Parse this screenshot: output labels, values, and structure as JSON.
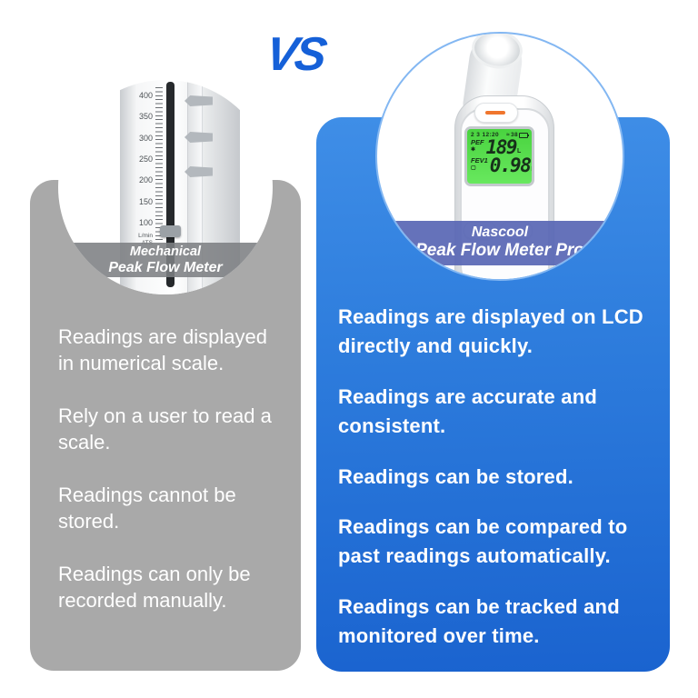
{
  "header": {
    "vs_label": "VS"
  },
  "left_panel": {
    "circle_label_line1": "Mechanical",
    "circle_label_line2": "Peak Flow Meter",
    "bullets": [
      "Readings are displayed in numerical scale.",
      "Rely on a user to read a scale.",
      "Readings cannot be stored.",
      "Readings can only be recorded manually."
    ],
    "meter_scale": {
      "numbers": [
        "400",
        "350",
        "300",
        "250",
        "200",
        "150",
        "100"
      ],
      "unit_line1": "L/min",
      "unit_line2": "ATS"
    }
  },
  "right_panel": {
    "circle_label_line1": "Nascool",
    "circle_label_line2": "Peak Flow Meter Pro",
    "bullets": [
      "Readings are displayed on LCD directly and quickly.",
      "Readings are accurate and consistent.",
      "Readings can be stored.",
      "Readings can be compared to past readings automatically.",
      "Readings can be tracked and monitored over time."
    ],
    "device_lcd": {
      "status_left": "2 3 12:20",
      "status_wave": "≈",
      "status_right": "38",
      "pef_label": "PEF",
      "pef_icon": "✱",
      "pef_value": "189",
      "pef_unit": "L",
      "fev_label": "FEV1",
      "fev_icon": "▢",
      "fev_value": "0.98",
      "fev_unit": "L"
    }
  },
  "colors": {
    "vs_blue": "#1560d8",
    "panel_gray": "#a9a9a9",
    "panel_blue_top": "#3f8ee7",
    "panel_blue_bottom": "#1a63cf",
    "left_banner": "#7d8083",
    "right_banner": "#5866b4",
    "lcd_green": "#52d948",
    "accent_orange": "#f0762e",
    "arrow_blue": "#3d6ed9",
    "text_white": "#ffffff"
  }
}
